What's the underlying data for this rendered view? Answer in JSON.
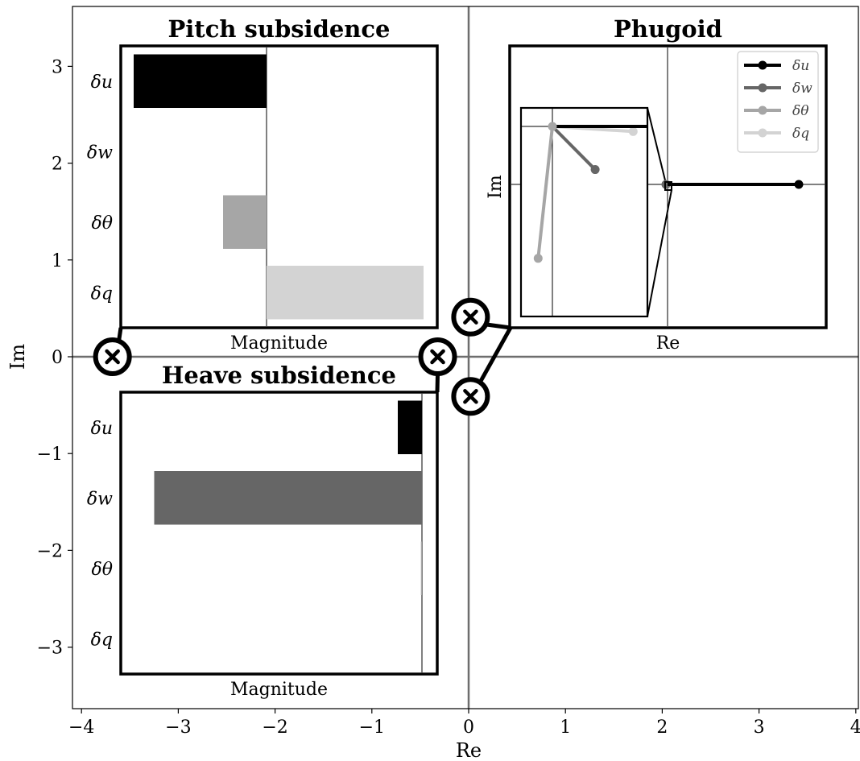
{
  "chart_data": {
    "type": "scatter",
    "xlabel": "Re",
    "ylabel": "Im",
    "xlim": [
      -4.1,
      4.0
    ],
    "ylim": [
      -3.6,
      3.6
    ],
    "xticks": [
      "−4",
      "−3",
      "−2",
      "−1",
      "0",
      "1",
      "2",
      "3",
      "4"
    ],
    "yticks": [
      "−3",
      "−2",
      "−1",
      "0",
      "1",
      "2",
      "3"
    ],
    "poles": [
      {
        "mode": "Pitch subsidence",
        "re": -3.68,
        "im": 0.0
      },
      {
        "mode": "Heave subsidence",
        "re": -0.32,
        "im": 0.0
      },
      {
        "mode": "Phugoid",
        "re": 0.02,
        "im": 0.41
      },
      {
        "mode": "Phugoid",
        "re": 0.02,
        "im": -0.41
      }
    ],
    "variables": [
      "δu",
      "δw",
      "δθ",
      "δq"
    ],
    "insets": [
      {
        "title": "Pitch subsidence",
        "type": "bar",
        "xlabel": "Magnitude",
        "values": [
          -0.55,
          0.0,
          -0.18,
          0.65
        ]
      },
      {
        "title": "Heave subsidence",
        "type": "bar",
        "xlabel": "Magnitude",
        "values": [
          -0.12,
          -1.33,
          -0.005,
          0.0
        ]
      },
      {
        "title": "Phugoid",
        "type": "line",
        "xlabel": "Re",
        "ylabel": "Im",
        "legend": [
          "δu",
          "δw",
          "δθ",
          "δq"
        ],
        "legend_position": "top-right",
        "series": [
          {
            "name": "δu",
            "re": [
              0.0,
              1.0
            ],
            "im": [
              0.0,
              0.0
            ]
          },
          {
            "name": "δw",
            "re": [
              0.0,
              -0.012
            ],
            "im": [
              0.0,
              0.0
            ]
          },
          {
            "name": "δθ",
            "re": [
              0.0,
              -0.012
            ],
            "im": [
              0.0,
              -0.0005
            ]
          },
          {
            "name": "δq",
            "re": [
              0.0,
              -0.004
            ],
            "im": [
              0.0,
              0.0
            ]
          }
        ],
        "zoom_inset": {
          "series": [
            {
              "name": "δu",
              "re": [
                0.0,
                1.0
              ],
              "im": [
                0.0,
                0.0
              ]
            },
            {
              "name": "δw",
              "re": [
                0.0,
                0.45
              ],
              "im": [
                0.0,
                -0.85
              ]
            },
            {
              "name": "δθ",
              "re": [
                0.0,
                -0.15
              ],
              "im": [
                0.0,
                -2.6
              ]
            },
            {
              "name": "δq",
              "re": [
                0.0,
                0.85
              ],
              "im": [
                0.0,
                -0.1
              ]
            }
          ]
        }
      }
    ],
    "colors": {
      "δu": "#000000",
      "δw": "#666666",
      "δθ": "#a6a6a6",
      "δq": "#d3d3d3",
      "axes_line": "#6e6e6e"
    }
  }
}
